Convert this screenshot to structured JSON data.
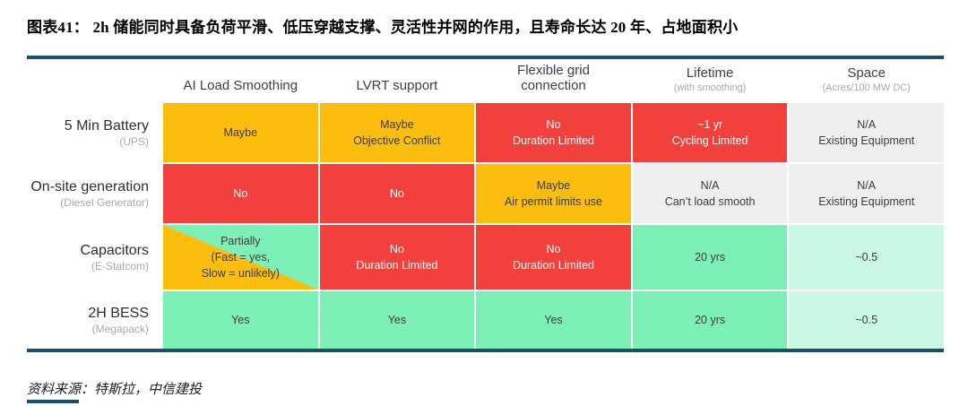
{
  "figure": {
    "caption": "图表41： 2h 储能同时具备负荷平滑、低压穿越支撑、灵活性并网的作用，且寿命长达 20 年、占地面积小",
    "source": "资料来源：特斯拉，中信建投"
  },
  "colors": {
    "accent_navy": "#1E4C6E",
    "yellow": "#FBBE0E",
    "red": "#F2413D",
    "green": "#7DF0B8",
    "pale_green": "#CBF8E4",
    "gray": "#F0EFEF"
  },
  "chart_data": {
    "type": "table",
    "title": "2h 储能同时具备负荷平滑、低压穿越支撑、灵活性并网的作用，且寿命长达 20 年、占地面积小",
    "columns": [
      {
        "label": "AI Load Smoothing",
        "sublabel": ""
      },
      {
        "label": "LVRT support",
        "sublabel": ""
      },
      {
        "label": "Flexible grid connection",
        "sublabel": ""
      },
      {
        "label": "Lifetime",
        "sublabel": "(with smoothing)"
      },
      {
        "label": "Space",
        "sublabel": "(Acres/100 MW DC)"
      }
    ],
    "rows": [
      {
        "label": "5 Min Battery",
        "sublabel": "(UPS)",
        "cells": [
          {
            "lines": [
              "Maybe"
            ],
            "style": "yellow"
          },
          {
            "lines": [
              "Maybe",
              "Objective Conflict"
            ],
            "style": "yellow"
          },
          {
            "lines": [
              "No",
              "Duration Limited"
            ],
            "style": "red"
          },
          {
            "lines": [
              "~1 yr",
              "Cycling Limited"
            ],
            "style": "red"
          },
          {
            "lines": [
              "N/A",
              "Existing Equipment"
            ],
            "style": "gray"
          }
        ]
      },
      {
        "label": "On-site generation",
        "sublabel": "(Diesel Generator)",
        "cells": [
          {
            "lines": [
              "No"
            ],
            "style": "red"
          },
          {
            "lines": [
              "No"
            ],
            "style": "red"
          },
          {
            "lines": [
              "Maybe",
              "Air permit limits use"
            ],
            "style": "yellow"
          },
          {
            "lines": [
              "N/A",
              "Can’t load smooth"
            ],
            "style": "gray"
          },
          {
            "lines": [
              "N/A",
              "Existing Equipment"
            ],
            "style": "gray"
          }
        ]
      },
      {
        "label": "Capacitors",
        "sublabel": "(E-Statcom)",
        "cells": [
          {
            "lines": [
              "Partially",
              "(Fast = yes,",
              "Slow = unlikely)"
            ],
            "style": "split"
          },
          {
            "lines": [
              "No",
              "Duration Limited"
            ],
            "style": "red"
          },
          {
            "lines": [
              "No",
              "Duration Limited"
            ],
            "style": "red"
          },
          {
            "lines": [
              "20 yrs"
            ],
            "style": "green"
          },
          {
            "lines": [
              "~0.5"
            ],
            "style": "palegreen"
          }
        ]
      },
      {
        "label": "2H BESS",
        "sublabel": "(Megapack)",
        "cells": [
          {
            "lines": [
              "Yes"
            ],
            "style": "green"
          },
          {
            "lines": [
              "Yes"
            ],
            "style": "green"
          },
          {
            "lines": [
              "Yes"
            ],
            "style": "green"
          },
          {
            "lines": [
              "20 yrs"
            ],
            "style": "green"
          },
          {
            "lines": [
              "~0.5"
            ],
            "style": "palegreen"
          }
        ]
      }
    ]
  }
}
